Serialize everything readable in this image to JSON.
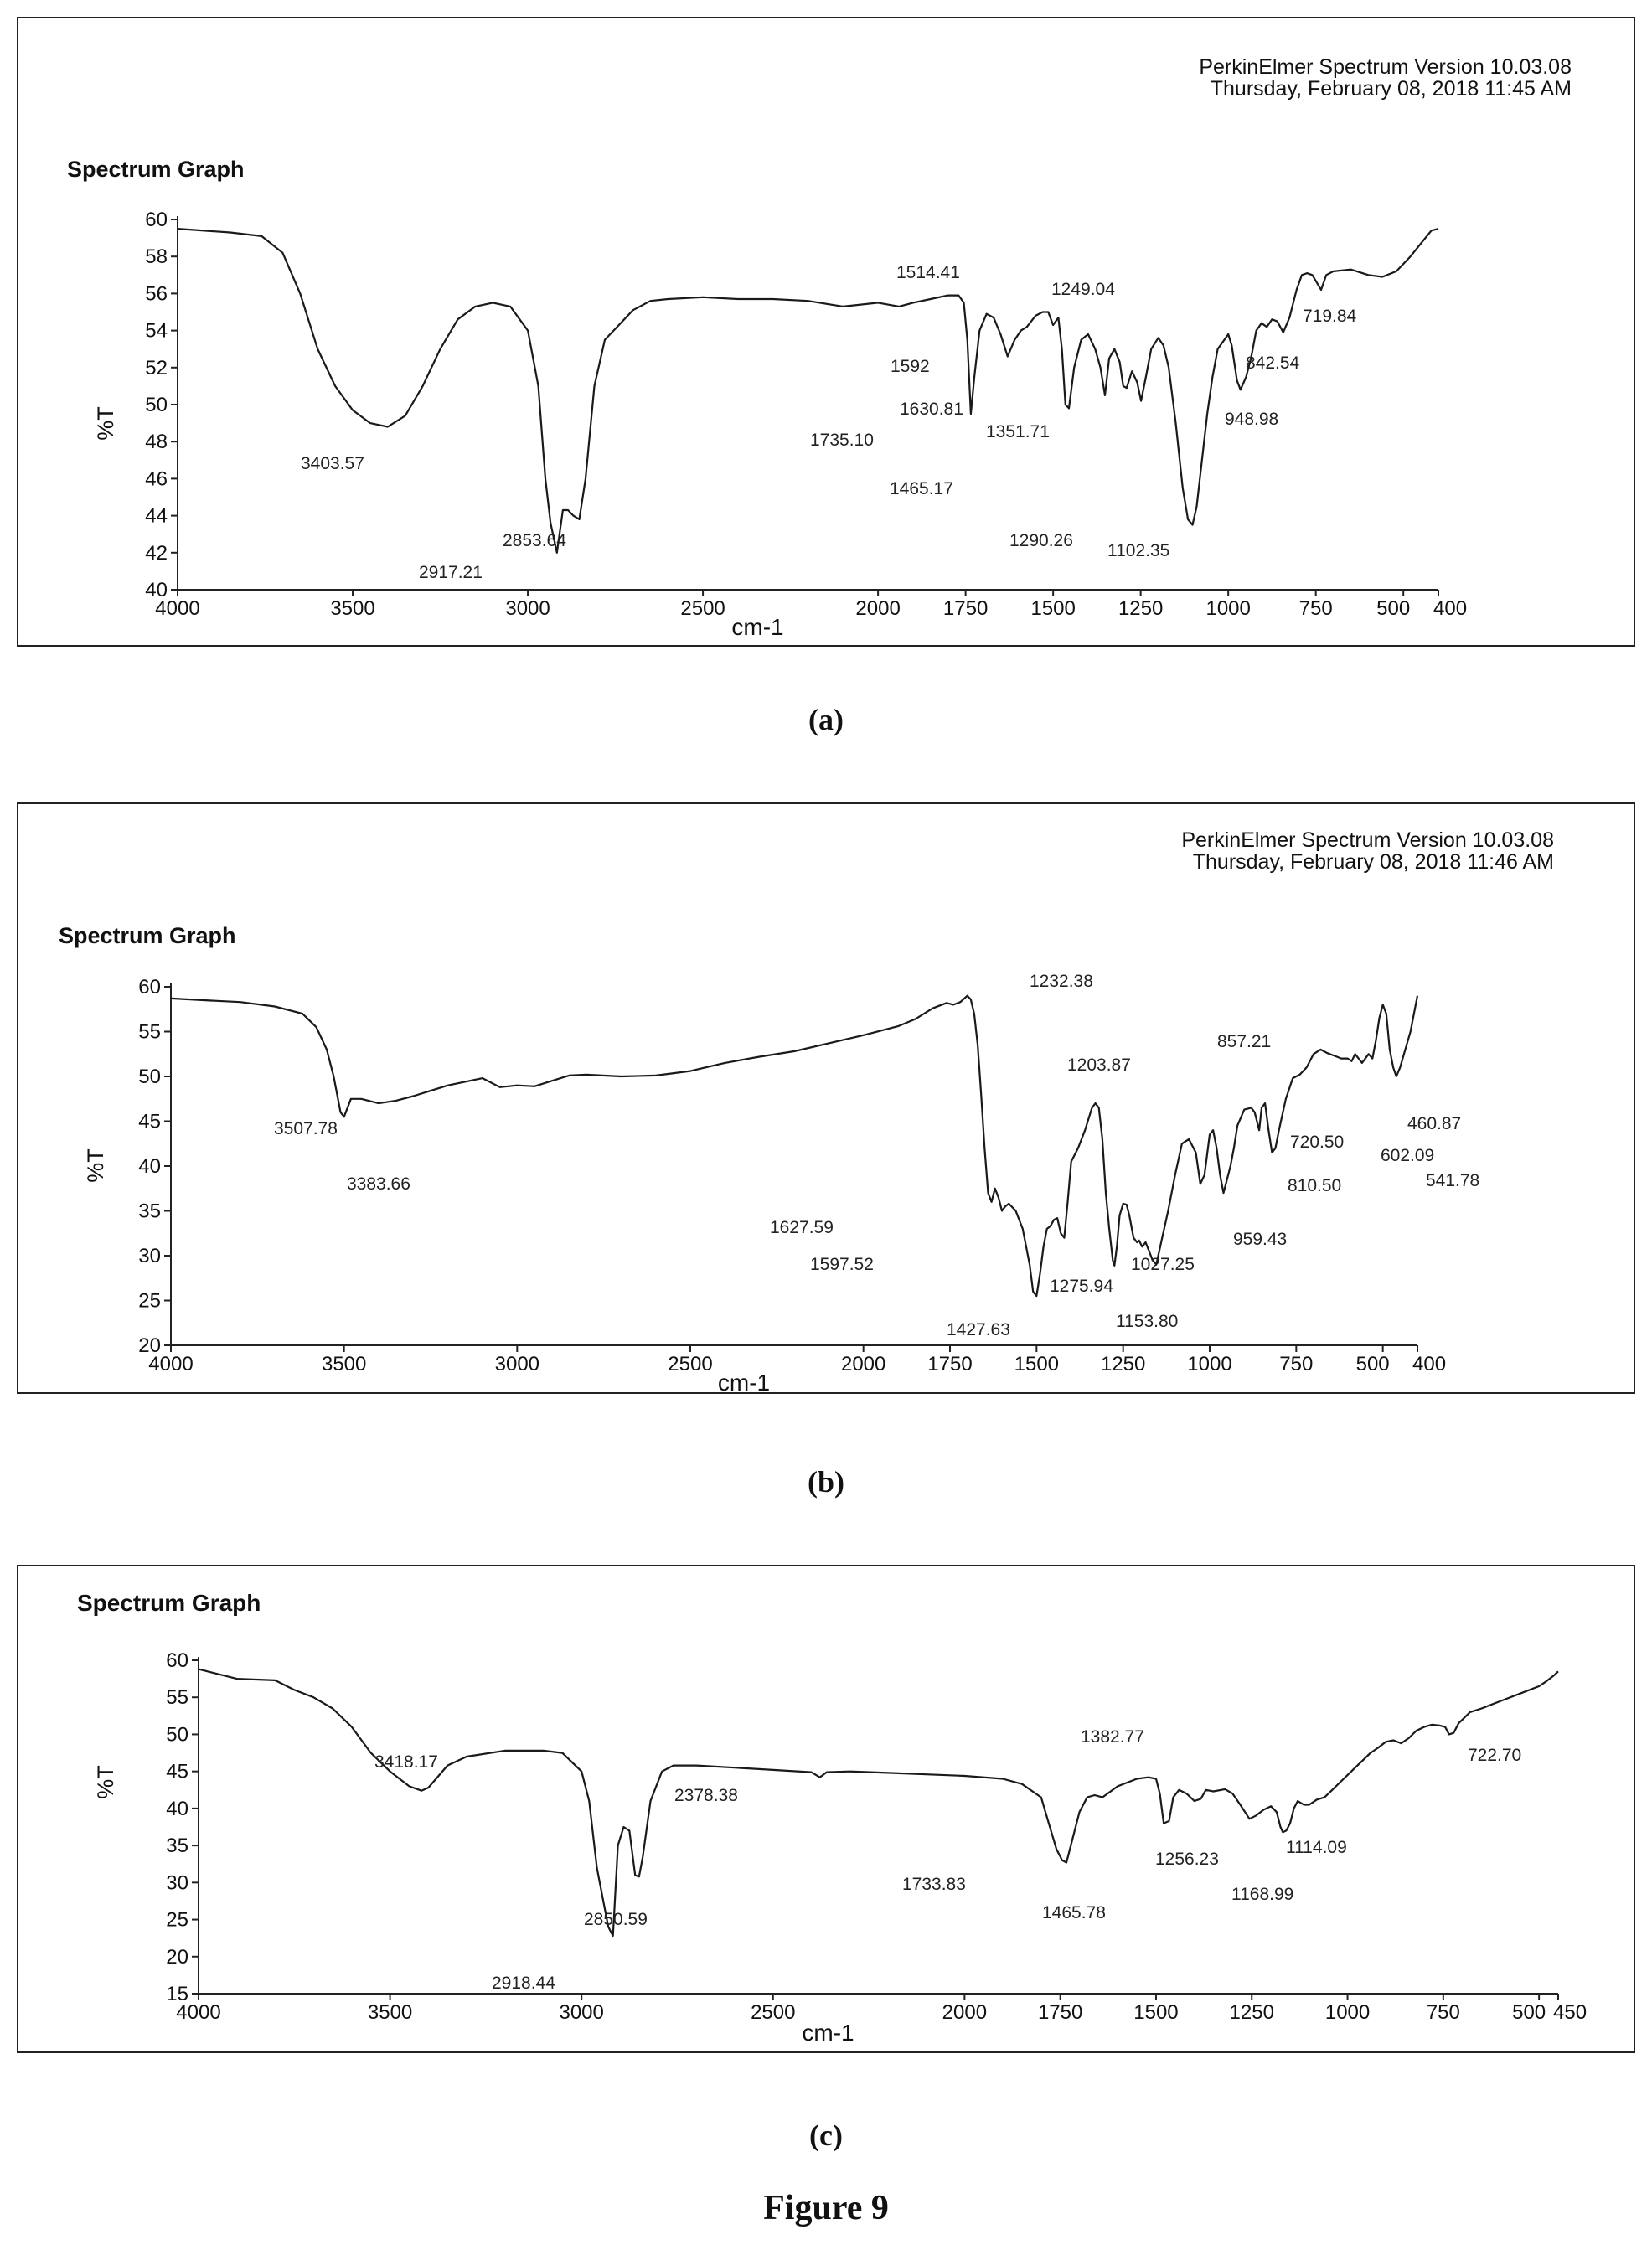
{
  "figure_caption": "Figure 9",
  "panels": [
    {
      "caption": "(a)",
      "software": "PerkinElmer Spectrum Version 10.03.08",
      "timestamp": "Thursday, February 08, 2018 11:45 AM",
      "title": "Spectrum Graph",
      "ylabel": "%T",
      "xlabel": "cm-1"
    },
    {
      "caption": "(b)",
      "software": "PerkinElmer Spectrum Version 10.03.08",
      "timestamp": "Thursday, February 08, 2018 11:46 AM",
      "title": "Spectrum Graph",
      "ylabel": "%T",
      "xlabel": "cm-1"
    },
    {
      "caption": "(c)",
      "software": "",
      "timestamp": "",
      "title": "Spectrum Graph",
      "ylabel": "%T",
      "xlabel": "cm-1"
    }
  ],
  "chart_data": [
    {
      "type": "line",
      "title": "Spectrum Graph",
      "xlabel": "cm-1",
      "ylabel": "%T",
      "xlim": [
        4000,
        400
      ],
      "ylim": [
        40,
        60
      ],
      "xticks": [
        4000,
        3500,
        3000,
        2500,
        2000,
        1750,
        1500,
        1250,
        1000,
        750,
        500,
        400
      ],
      "xtick_labels": [
        "4000",
        "3500",
        "3000",
        "2500",
        "2000",
        "1750",
        "1500",
        "1250",
        "1000",
        "750",
        "500",
        "400"
      ],
      "yticks": [
        40,
        42,
        44,
        46,
        48,
        50,
        52,
        54,
        56,
        58,
        60
      ],
      "grid": false,
      "series": [
        {
          "x": [
            4000,
            3850,
            3760,
            3700,
            3650,
            3600,
            3550,
            3500,
            3450,
            3400,
            3350,
            3300,
            3250,
            3200,
            3150,
            3100,
            3050,
            3000,
            2970,
            2950,
            2935,
            2917,
            2900,
            2885,
            2870,
            2853,
            2835,
            2810,
            2780,
            2740,
            2700,
            2650,
            2600,
            2500,
            2400,
            2300,
            2200,
            2100,
            2000,
            1940,
            1900,
            1850,
            1800,
            1770,
            1755,
            1745,
            1735,
            1725,
            1710,
            1690,
            1670,
            1650,
            1630,
            1610,
            1592,
            1575,
            1550,
            1530,
            1514,
            1500,
            1485,
            1475,
            1465,
            1455,
            1440,
            1420,
            1400,
            1380,
            1365,
            1352,
            1340,
            1325,
            1310,
            1300,
            1290,
            1275,
            1260,
            1249,
            1235,
            1220,
            1200,
            1185,
            1170,
            1150,
            1130,
            1115,
            1102,
            1090,
            1075,
            1060,
            1045,
            1030,
            1015,
            1000,
            990,
            975,
            965,
            949,
            935,
            920,
            905,
            890,
            875,
            860,
            843,
            825,
            805,
            790,
            775,
            760,
            735,
            720,
            700,
            650,
            600,
            560,
            520,
            480,
            450,
            420,
            400
          ],
          "y": [
            59.5,
            59.3,
            59.1,
            58.2,
            56.0,
            53.0,
            51.0,
            49.7,
            49.0,
            48.8,
            49.4,
            51.0,
            53.0,
            54.6,
            55.3,
            55.5,
            55.3,
            54.0,
            51.0,
            46.0,
            43.6,
            42.0,
            44.3,
            44.3,
            44.0,
            43.8,
            46.0,
            51.0,
            53.5,
            54.3,
            55.1,
            55.6,
            55.7,
            55.8,
            55.7,
            55.7,
            55.6,
            55.3,
            55.5,
            55.3,
            55.5,
            55.7,
            55.9,
            55.9,
            55.5,
            53.5,
            49.5,
            51.5,
            54.0,
            54.9,
            54.7,
            53.8,
            52.6,
            53.5,
            54.0,
            54.2,
            54.8,
            55.0,
            55.0,
            54.3,
            54.7,
            53.0,
            50.0,
            49.8,
            52.0,
            53.5,
            53.8,
            53.0,
            52.0,
            50.5,
            52.5,
            53.0,
            52.3,
            51.0,
            50.9,
            51.8,
            51.2,
            50.2,
            51.5,
            53.0,
            53.6,
            53.2,
            52.0,
            49.0,
            45.5,
            43.8,
            43.5,
            44.5,
            47.0,
            49.5,
            51.5,
            53.0,
            53.4,
            53.8,
            53.2,
            51.3,
            50.8,
            51.5,
            52.5,
            54.0,
            54.4,
            54.2,
            54.6,
            54.5,
            53.9,
            54.7,
            56.2,
            57.0,
            57.1,
            57.0,
            56.2,
            57.0,
            57.2,
            57.3,
            57.0,
            56.9,
            57.2,
            58.0,
            58.7,
            59.4,
            59.5
          ]
        }
      ],
      "annotations": [
        "3403.57",
        "2917.21",
        "2853.64",
        "1735.10",
        "1630.81",
        "1592",
        "1514.41",
        "1465.17",
        "1351.71",
        "1290.26",
        "1249.04",
        "1102.35",
        "948.98",
        "842.54",
        "719.84"
      ]
    },
    {
      "type": "line",
      "title": "Spectrum Graph",
      "xlabel": "cm-1",
      "ylabel": "%T",
      "xlim": [
        4000,
        400
      ],
      "ylim": [
        20,
        60
      ],
      "xticks": [
        4000,
        3500,
        3000,
        2500,
        2000,
        1750,
        1500,
        1250,
        1000,
        750,
        500,
        400
      ],
      "xtick_labels": [
        "4000",
        "3500",
        "3000",
        "2500",
        "2000",
        "1750",
        "1500",
        "1250",
        "1000",
        "750",
        "500",
        "400"
      ],
      "yticks": [
        20,
        25,
        30,
        35,
        40,
        45,
        50,
        55,
        60
      ],
      "grid": false,
      "series": [
        {
          "x": [
            4000,
            3900,
            3800,
            3700,
            3620,
            3580,
            3550,
            3530,
            3510,
            3500,
            3480,
            3450,
            3400,
            3350,
            3300,
            3200,
            3100,
            3050,
            3000,
            2950,
            2900,
            2850,
            2800,
            2700,
            2600,
            2500,
            2400,
            2300,
            2200,
            2100,
            2000,
            1900,
            1850,
            1800,
            1760,
            1740,
            1720,
            1700,
            1690,
            1680,
            1670,
            1660,
            1650,
            1640,
            1630,
            1620,
            1610,
            1600,
            1590,
            1580,
            1560,
            1540,
            1520,
            1510,
            1500,
            1490,
            1480,
            1470,
            1460,
            1450,
            1440,
            1430,
            1420,
            1410,
            1400,
            1380,
            1360,
            1340,
            1330,
            1320,
            1310,
            1300,
            1290,
            1280,
            1275,
            1268,
            1260,
            1250,
            1240,
            1232,
            1220,
            1210,
            1204,
            1195,
            1185,
            1175,
            1165,
            1160,
            1154,
            1140,
            1120,
            1100,
            1080,
            1060,
            1040,
            1027,
            1015,
            1000,
            990,
            980,
            970,
            960,
            950,
            940,
            930,
            920,
            900,
            880,
            870,
            857,
            850,
            840,
            830,
            820,
            810,
            800,
            780,
            760,
            740,
            720,
            700,
            680,
            660,
            640,
            620,
            602,
            590,
            580,
            570,
            560,
            541,
            530,
            520,
            510,
            500,
            490,
            480,
            470,
            461,
            450,
            420,
            400
          ],
          "y": [
            58.7,
            58.5,
            58.3,
            57.8,
            57.0,
            55.5,
            53.0,
            50.0,
            46.0,
            45.5,
            47.5,
            47.5,
            47.0,
            47.3,
            47.8,
            49.0,
            49.8,
            48.8,
            49.0,
            48.9,
            49.5,
            50.1,
            50.2,
            50.0,
            50.1,
            50.6,
            51.5,
            52.2,
            52.8,
            53.7,
            54.6,
            55.6,
            56.4,
            57.6,
            58.2,
            58.0,
            58.3,
            59.0,
            58.6,
            57.0,
            53.5,
            48.0,
            42.0,
            37.0,
            36.0,
            37.5,
            36.5,
            35.0,
            35.5,
            35.8,
            35.0,
            33.0,
            29.0,
            26.0,
            25.5,
            28.0,
            31.0,
            33.0,
            33.3,
            34.0,
            34.2,
            32.5,
            32.0,
            36.0,
            40.5,
            42.0,
            44.0,
            46.5,
            47.0,
            46.5,
            43.0,
            37.0,
            33.0,
            29.5,
            28.9,
            31.0,
            34.5,
            35.8,
            35.7,
            34.5,
            32.0,
            31.5,
            31.7,
            31.0,
            31.5,
            30.5,
            29.5,
            29.3,
            29.0,
            31.5,
            35.0,
            39.0,
            42.5,
            43.0,
            41.5,
            38.0,
            39.0,
            43.5,
            44.0,
            42.0,
            39.0,
            37.0,
            38.5,
            40.0,
            42.0,
            44.5,
            46.3,
            46.5,
            46.0,
            44.0,
            46.5,
            47.0,
            44.0,
            41.5,
            42.0,
            44.0,
            47.5,
            49.8,
            50.2,
            51.0,
            52.5,
            53.0,
            52.6,
            52.3,
            52.0,
            52.0,
            51.7,
            52.5,
            52.0,
            51.5,
            52.5,
            52.0,
            54.0,
            56.5,
            58.0,
            57.0,
            53.0,
            51.0,
            50.0,
            51.0,
            55.0,
            59.0
          ]
        }
      ],
      "annotations": [
        "3507.78",
        "3383.66",
        "1627.59",
        "1597.52",
        "1427.63",
        "1275.94",
        "1232.38",
        "1203.87",
        "1153.80",
        "1027.25",
        "959.43",
        "857.21",
        "810.50",
        "720.50",
        "602.09",
        "541.78",
        "460.87"
      ]
    },
    {
      "type": "line",
      "title": "Spectrum Graph",
      "xlabel": "cm-1",
      "ylabel": "%T",
      "xlim": [
        4000,
        450
      ],
      "ylim": [
        15,
        60
      ],
      "xticks": [
        4000,
        3500,
        3000,
        2500,
        2000,
        1750,
        1500,
        1250,
        1000,
        750,
        500,
        450
      ],
      "xtick_labels": [
        "4000",
        "3500",
        "3000",
        "2500",
        "2000",
        "1750",
        "1500",
        "1250",
        "1000",
        "750",
        "500",
        "450"
      ],
      "yticks": [
        15,
        20,
        25,
        30,
        35,
        40,
        45,
        50,
        55,
        60
      ],
      "grid": false,
      "series": [
        {
          "x": [
            4000,
            3900,
            3800,
            3750,
            3700,
            3650,
            3600,
            3550,
            3500,
            3450,
            3418,
            3400,
            3380,
            3350,
            3300,
            3200,
            3100,
            3050,
            3000,
            2980,
            2960,
            2945,
            2930,
            2918,
            2905,
            2890,
            2875,
            2860,
            2850,
            2840,
            2820,
            2790,
            2760,
            2700,
            2600,
            2500,
            2400,
            2378,
            2360,
            2300,
            2200,
            2100,
            2000,
            1900,
            1850,
            1800,
            1780,
            1760,
            1745,
            1734,
            1720,
            1700,
            1680,
            1660,
            1640,
            1600,
            1550,
            1520,
            1500,
            1490,
            1480,
            1466,
            1455,
            1440,
            1420,
            1400,
            1383,
            1370,
            1350,
            1320,
            1300,
            1280,
            1256,
            1240,
            1220,
            1200,
            1185,
            1175,
            1169,
            1160,
            1150,
            1140,
            1130,
            1114,
            1100,
            1080,
            1060,
            1040,
            1020,
            1000,
            980,
            960,
            940,
            920,
            900,
            880,
            860,
            840,
            820,
            800,
            780,
            760,
            745,
            735,
            723,
            710,
            700,
            680,
            650,
            600,
            550,
            500,
            480,
            460,
            450
          ],
          "y": [
            58.8,
            57.5,
            57.3,
            56.0,
            55.0,
            53.5,
            51.0,
            47.5,
            45.0,
            43.0,
            42.4,
            42.8,
            44.0,
            45.8,
            47.0,
            47.8,
            47.8,
            47.5,
            45.0,
            41.0,
            32.0,
            28.0,
            24.0,
            22.8,
            35.0,
            37.5,
            37.0,
            31.0,
            30.8,
            33.5,
            41.0,
            45.0,
            45.8,
            45.8,
            45.5,
            45.2,
            44.9,
            44.2,
            44.9,
            45.0,
            44.8,
            44.6,
            44.4,
            44.0,
            43.3,
            41.5,
            38.0,
            34.5,
            33.0,
            32.7,
            35.5,
            39.5,
            41.5,
            41.8,
            41.5,
            43.0,
            44.0,
            44.2,
            44.0,
            42.0,
            38.0,
            38.3,
            41.5,
            42.5,
            42.0,
            41.0,
            41.3,
            42.5,
            42.3,
            42.6,
            42.0,
            40.5,
            38.6,
            39.0,
            39.8,
            40.3,
            39.5,
            37.5,
            36.8,
            37.0,
            38.0,
            40.0,
            41.0,
            40.5,
            40.5,
            41.2,
            41.5,
            42.5,
            43.5,
            44.5,
            45.5,
            46.5,
            47.5,
            48.2,
            49.0,
            49.2,
            48.8,
            49.5,
            50.5,
            51.0,
            51.3,
            51.2,
            51.0,
            50.0,
            50.2,
            51.5,
            52.0,
            53.0,
            53.5,
            54.5,
            55.5,
            56.5,
            57.2,
            58.0,
            58.5
          ]
        }
      ],
      "annotations": [
        "3418.17",
        "2918.44",
        "2850.59",
        "2378.38",
        "1733.83",
        "1465.78",
        "1382.77",
        "1256.23",
        "1168.99",
        "1114.09",
        "722.70"
      ]
    }
  ]
}
